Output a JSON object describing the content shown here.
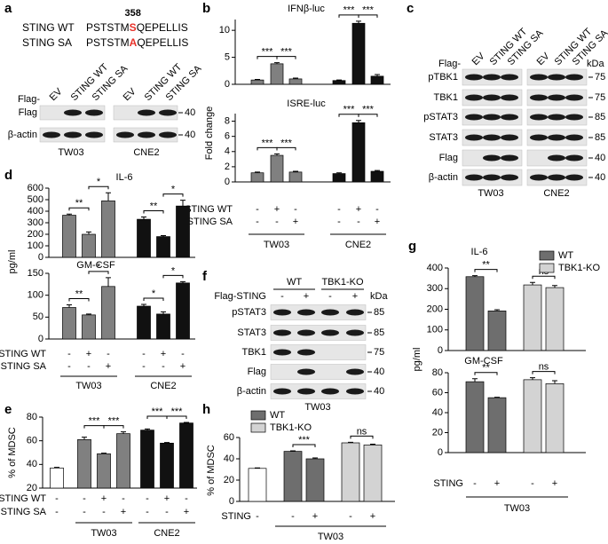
{
  "panel_labels": [
    "a",
    "b",
    "c",
    "d",
    "e",
    "f",
    "g",
    "h"
  ],
  "panel_a": {
    "position": "358",
    "sequences": [
      {
        "name": "STING WT",
        "prefix": "PSTSTM",
        "residue": "S",
        "suffix": "QEPELLIS"
      },
      {
        "name": "STING SA",
        "prefix": "PSTSTM",
        "residue": "A",
        "suffix": "QEPELLIS"
      }
    ],
    "blot": {
      "lane_prefix": "Flag-",
      "lanes": [
        "EV",
        "STING WT",
        "STING SA"
      ],
      "rows": [
        "Flag",
        "β-actin"
      ],
      "markers": [
        40,
        40
      ],
      "cell_lines": [
        "TW03",
        "CNE2"
      ]
    }
  },
  "panel_c": {
    "blot": {
      "lane_prefix": "Flag-",
      "unit": "kDa",
      "lanes": [
        "EV",
        "STING WT",
        "STING SA"
      ],
      "rows": [
        "pTBK1",
        "TBK1",
        "pSTAT3",
        "STAT3",
        "Flag",
        "β-actin"
      ],
      "markers": [
        75,
        75,
        85,
        85,
        40,
        40
      ],
      "cell_lines": [
        "TW03",
        "CNE2"
      ]
    }
  },
  "panel_f": {
    "blot": {
      "groups": [
        "WT",
        "TBK1-KO"
      ],
      "lane_prefix": "Flag-STING",
      "unit": "kDa",
      "lanes": [
        "-",
        "+",
        "-",
        "+"
      ],
      "rows": [
        "pSTAT3",
        "STAT3",
        "TBK1",
        "Flag",
        "β-actin"
      ],
      "markers": [
        85,
        85,
        75,
        40,
        40
      ],
      "cell_lines": [
        "TW03"
      ]
    }
  },
  "chart_data": [
    {
      "type": "bar",
      "title": "IFNβ-luc",
      "y_label": "Fold change",
      "ylim": [
        0,
        12
      ],
      "yticks": [
        0,
        5,
        10
      ],
      "series": [
        {
          "color": "#808080",
          "values": [
            0.8,
            3.8,
            1.0
          ],
          "errors": [
            0.1,
            0.2,
            0.15
          ]
        },
        {
          "color": "#111111",
          "values": [
            0.7,
            11.3,
            1.5
          ],
          "errors": [
            0.1,
            0.4,
            0.3
          ]
        }
      ],
      "significance": [
        "***",
        "***",
        "***",
        "***"
      ]
    },
    {
      "type": "bar",
      "title": "ISRE-luc",
      "ylim": [
        0,
        9
      ],
      "yticks": [
        0,
        2,
        4,
        6,
        8
      ],
      "series": [
        {
          "name": "TW03",
          "color": "#808080",
          "values": [
            1.2,
            3.5,
            1.3
          ],
          "errors": [
            0.1,
            0.2,
            0.1
          ]
        },
        {
          "name": "CNE2",
          "color": "#111111",
          "values": [
            1.1,
            7.8,
            1.4
          ],
          "errors": [
            0.1,
            0.3,
            0.1
          ]
        }
      ],
      "significance": [
        "***",
        "***",
        "***",
        "***"
      ],
      "rows": [
        {
          "label": "STING WT",
          "signs": [
            "-",
            "+",
            "-",
            "-",
            "+",
            "-"
          ]
        },
        {
          "label": "STING SA",
          "signs": [
            "-",
            "-",
            "+",
            "-",
            "-",
            "+"
          ]
        }
      ]
    },
    {
      "type": "bar",
      "title": "IL-6",
      "y_label": "pg/ml",
      "ylim": [
        0,
        600
      ],
      "yticks": [
        0,
        100,
        200,
        300,
        400,
        500,
        600
      ],
      "series": [
        {
          "color": "#808080",
          "values": [
            365,
            200,
            490
          ],
          "errors": [
            10,
            20,
            70
          ]
        },
        {
          "color": "#111111",
          "values": [
            330,
            180,
            445
          ],
          "errors": [
            20,
            8,
            50
          ]
        }
      ],
      "significance": [
        "**",
        "*",
        "**",
        "*"
      ]
    },
    {
      "type": "bar",
      "title": "GM-CSF",
      "ylim": [
        0,
        150
      ],
      "yticks": [
        0,
        50,
        100,
        150
      ],
      "series": [
        {
          "name": "TW03",
          "color": "#808080",
          "values": [
            72,
            55,
            120
          ],
          "errors": [
            6,
            2,
            20
          ]
        },
        {
          "name": "CNE2",
          "color": "#111111",
          "values": [
            75,
            57,
            128
          ],
          "errors": [
            4,
            5,
            3
          ]
        }
      ],
      "significance": [
        "**",
        "*",
        "*",
        "*"
      ],
      "rows": [
        {
          "label": "STING WT",
          "signs": [
            "-",
            "+",
            "-",
            "-",
            "+",
            "-"
          ]
        },
        {
          "label": "STING SA",
          "signs": [
            "-",
            "-",
            "+",
            "-",
            "-",
            "+"
          ]
        }
      ]
    },
    {
      "type": "bar",
      "y_label": "% of MDSC",
      "ylim": [
        20,
        80
      ],
      "yticks": [
        20,
        40,
        60,
        80
      ],
      "control": {
        "value": 37,
        "error": 0.5,
        "color": "#ffffff"
      },
      "series": [
        {
          "name": "TW03",
          "color": "#808080",
          "values": [
            61,
            49,
            66
          ],
          "errors": [
            2,
            0.5,
            1.5
          ]
        },
        {
          "name": "CNE2",
          "color": "#111111",
          "values": [
            69,
            58,
            75
          ],
          "errors": [
            1,
            0.5,
            0.5
          ]
        }
      ],
      "significance": [
        "***",
        "***",
        "***",
        "***"
      ],
      "rows": [
        {
          "label": "STING WT",
          "signs": [
            "-",
            "-",
            "+",
            "-",
            "-",
            "+",
            "-"
          ]
        },
        {
          "label": "STING SA",
          "signs": [
            "-",
            "-",
            "-",
            "+",
            "-",
            "-",
            "+"
          ]
        }
      ]
    },
    {
      "type": "bar",
      "title": "IL-6",
      "y_label": "pg/ml",
      "legend": "upper right",
      "ylim": [
        0,
        400
      ],
      "yticks": [
        0,
        100,
        200,
        300,
        400
      ],
      "series": [
        {
          "name": "WT",
          "color": "#6e6e6e",
          "values": [
            358,
            192
          ],
          "errors": [
            5,
            6
          ]
        },
        {
          "name": "TBK1-KO",
          "color": "#d3d3d3",
          "values": [
            318,
            305
          ],
          "errors": [
            12,
            10
          ]
        }
      ],
      "significance": [
        "**",
        "ns"
      ]
    },
    {
      "type": "bar",
      "title": "GM-CSF",
      "ylim": [
        0,
        80
      ],
      "yticks": [
        0,
        20,
        40,
        60,
        80
      ],
      "series": [
        {
          "color": "#6e6e6e",
          "values": [
            71,
            55
          ],
          "errors": [
            3,
            0.5
          ]
        },
        {
          "color": "#d3d3d3",
          "values": [
            73,
            69
          ],
          "errors": [
            2,
            3
          ]
        }
      ],
      "significance": [
        "**",
        "ns"
      ],
      "rows": [
        {
          "label": "STING",
          "signs": [
            "-",
            "+",
            "-",
            "+"
          ]
        }
      ],
      "group_label": "TW03"
    },
    {
      "type": "bar",
      "y_label": "% of MDSC",
      "legend": "upper left",
      "ylim": [
        0,
        60
      ],
      "yticks": [
        0,
        20,
        40,
        60
      ],
      "control": {
        "value": 31,
        "error": 0.5,
        "color": "#ffffff"
      },
      "series": [
        {
          "name": "WT",
          "color": "#6e6e6e",
          "values": [
            47,
            40
          ],
          "errors": [
            0.5,
            0.8
          ]
        },
        {
          "name": "TBK1-KO",
          "color": "#d3d3d3",
          "values": [
            55,
            53
          ],
          "errors": [
            0.5,
            0.8
          ]
        }
      ],
      "significance": [
        "***",
        "ns"
      ],
      "rows": [
        {
          "label": "STING",
          "signs": [
            "-",
            "-",
            "+",
            "-",
            "+"
          ]
        }
      ],
      "group_label": "TW03"
    }
  ]
}
